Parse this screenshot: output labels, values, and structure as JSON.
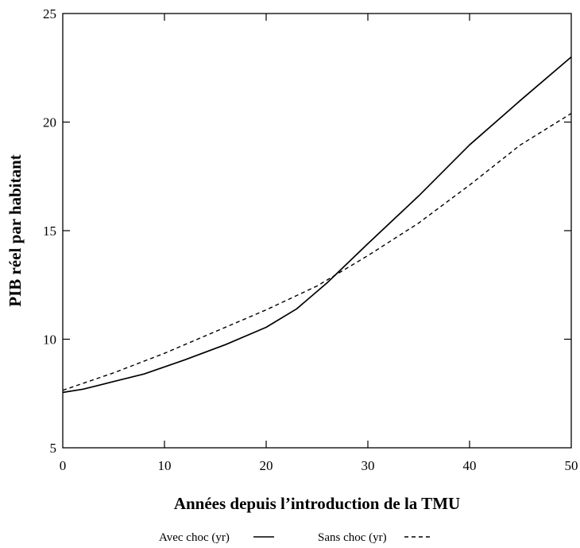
{
  "chart_data": {
    "type": "line",
    "title": "",
    "xlabel": "Années depuis l’introduction de la TMU",
    "ylabel": "PIB réel par habitant",
    "xlim": [
      0,
      50
    ],
    "ylim": [
      5,
      25
    ],
    "xticks": [
      0,
      10,
      20,
      30,
      40,
      50
    ],
    "yticks": [
      5,
      10,
      15,
      20,
      25
    ],
    "grid": false,
    "legend_position": "bottom",
    "series": [
      {
        "name": "Avec choc (yr)",
        "style": "solid",
        "color": "#000000",
        "x": [
          0,
          2,
          5,
          8,
          12,
          16,
          20,
          23,
          26,
          30,
          35,
          40,
          45,
          50
        ],
        "y": [
          7.55,
          7.7,
          8.05,
          8.4,
          9.05,
          9.75,
          10.55,
          11.4,
          12.6,
          14.4,
          16.6,
          18.95,
          21.0,
          23.0
        ]
      },
      {
        "name": "Sans choc (yr)",
        "style": "dashed",
        "color": "#000000",
        "x": [
          0,
          5,
          10,
          15,
          20,
          25,
          30,
          35,
          40,
          45,
          50
        ],
        "y": [
          7.65,
          8.45,
          9.35,
          10.35,
          11.35,
          12.45,
          13.85,
          15.35,
          17.1,
          18.95,
          20.4
        ]
      }
    ]
  }
}
